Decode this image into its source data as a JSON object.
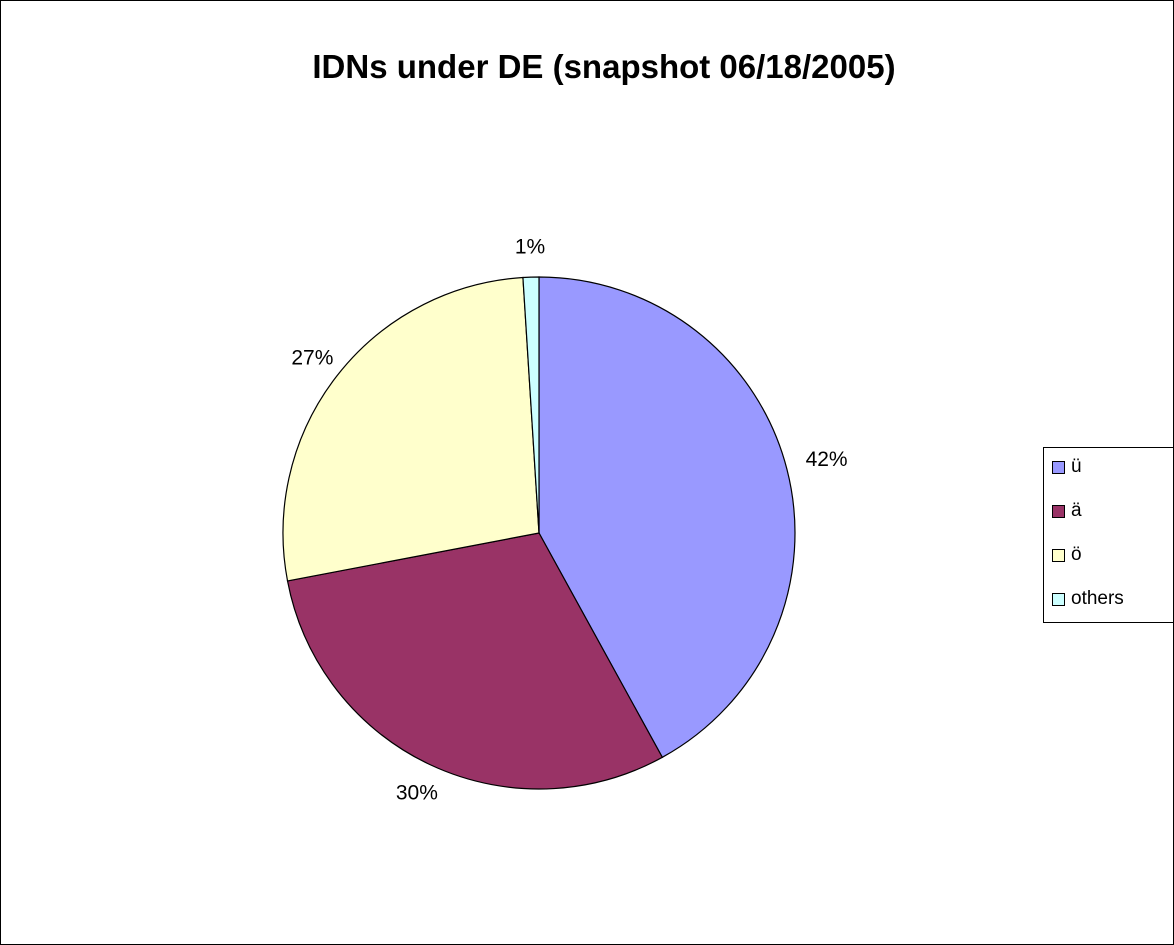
{
  "chart_data": {
    "type": "pie",
    "title": "IDNs under DE (snapshot 06/18/2005)",
    "slices": [
      {
        "name": "ü",
        "value": 42,
        "label": "42%",
        "color": "#9999FF"
      },
      {
        "name": "ä",
        "value": 30,
        "label": "30%",
        "color": "#993366"
      },
      {
        "name": "ö",
        "value": 27,
        "label": "27%",
        "color": "#FFFFCC"
      },
      {
        "name": "others",
        "value": 1,
        "label": "1%",
        "color": "#CCFFFF"
      }
    ],
    "legend_position": "right",
    "start_angle": "top, clockwise"
  }
}
